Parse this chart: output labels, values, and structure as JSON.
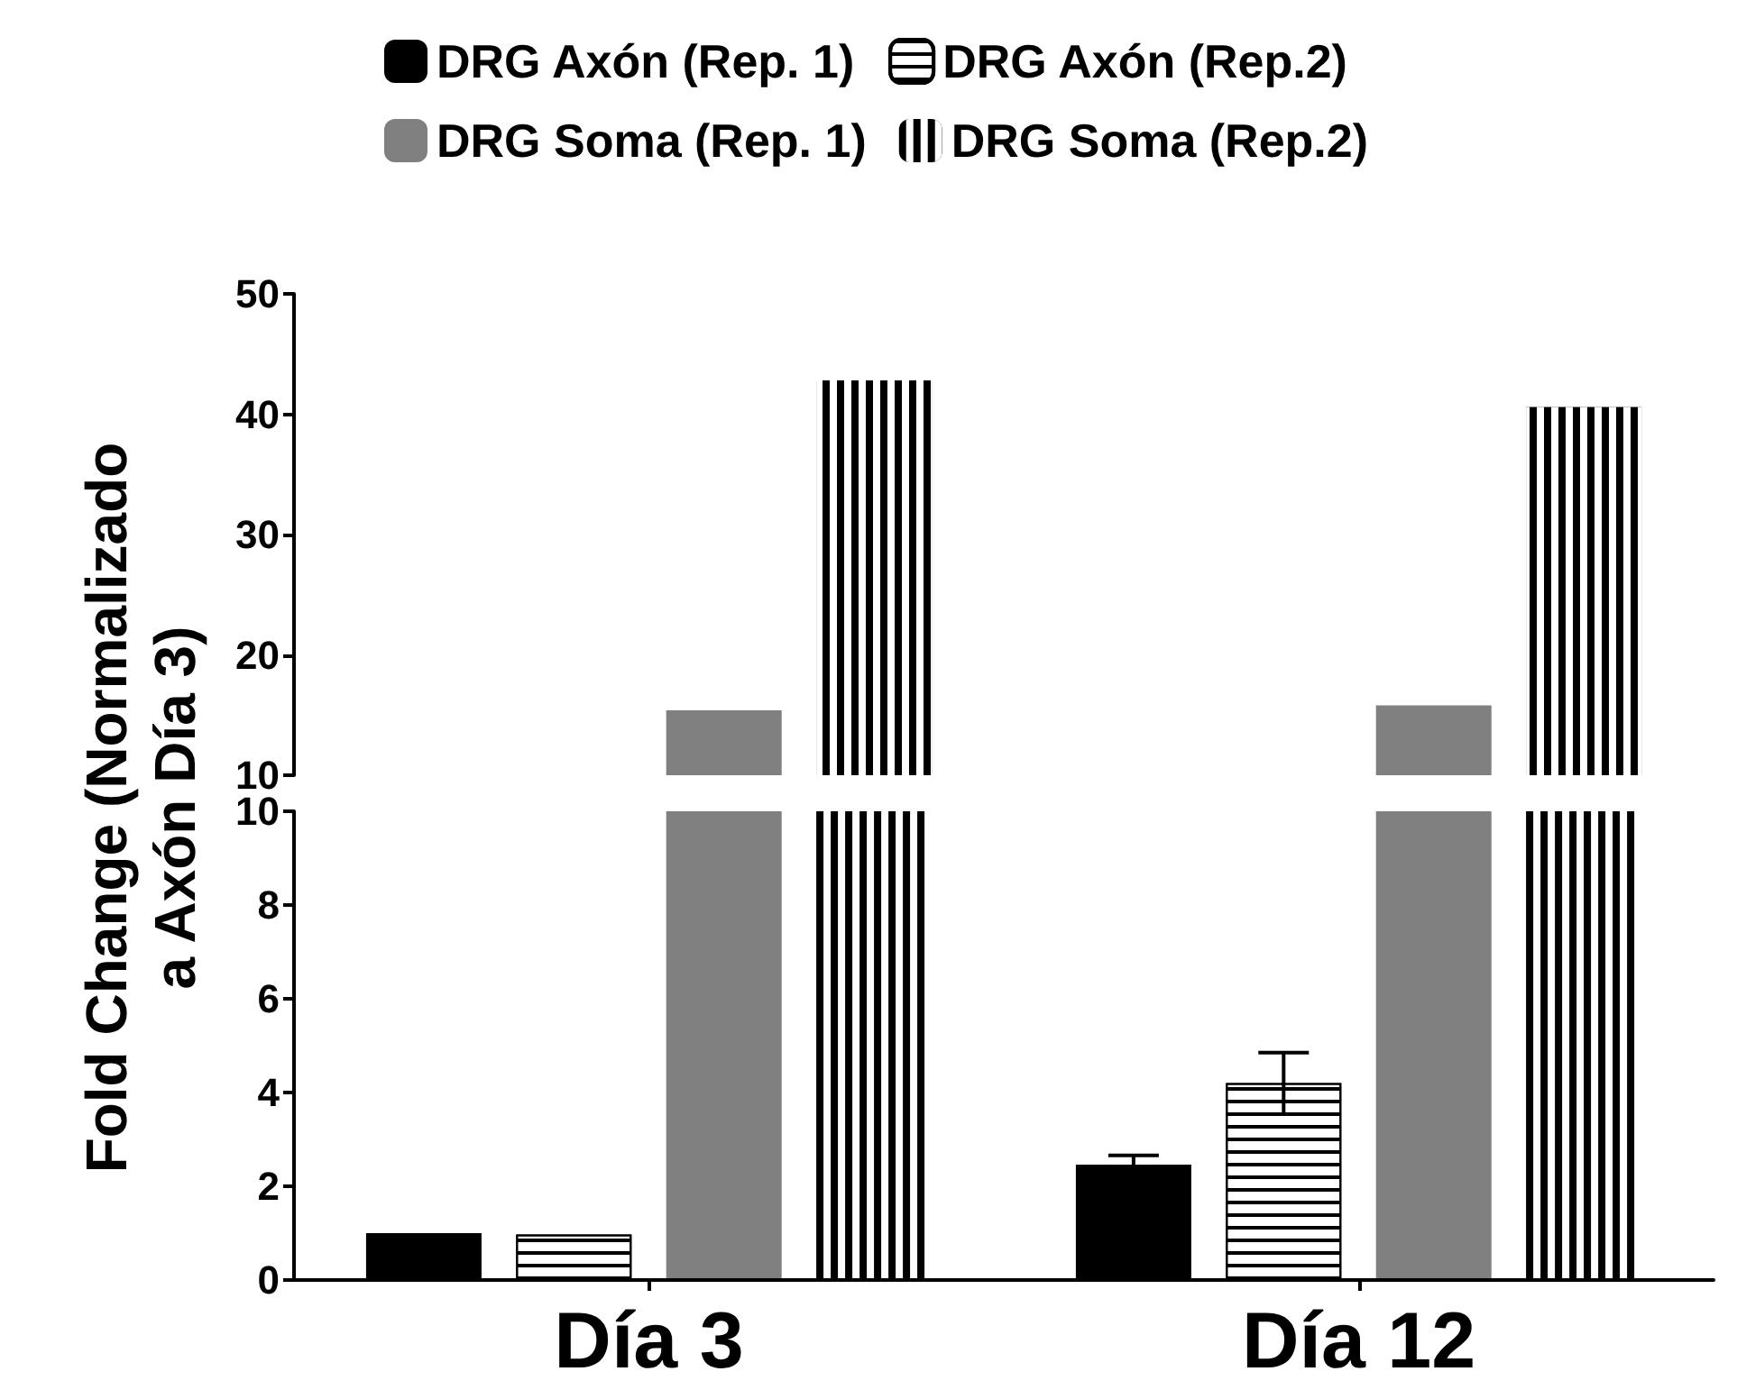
{
  "chart_data": [
    {
      "type": "bar",
      "categories": [
        null,
        null
      ],
      "series": [
        {
          "color": "#808080",
          "values": [
            15.4,
            15.8
          ]
        },
        {
          "color": "#000000",
          "values": [
            42.8,
            40.6
          ]
        }
      ],
      "ylim": [
        10,
        50
      ],
      "yticks": [
        10,
        20,
        30,
        40,
        50
      ],
      "grid": false,
      "tick_labels": "y"
    },
    {
      "type": "bar",
      "ylabel": "Fold Change (Normalizado\na Axón Día 3)",
      "categories": [
        "Día 3",
        "Día 12"
      ],
      "series": [
        {
          "name": "DRG Axón (Rep. 1)",
          "color": "#000000",
          "values": [
            1.0,
            2.46
          ],
          "errors": [
            null,
            0.2
          ]
        },
        {
          "name": "DRG Axón (Rep.2)",
          "color": "#ffffff",
          "values": [
            0.97,
            4.2
          ],
          "errors": [
            null,
            0.65
          ]
        },
        {
          "name": "DRG Soma (Rep. 1)",
          "color": "#808080",
          "values": [
            null,
            null
          ]
        },
        {
          "name": "DRG Soma (Rep.2)",
          "color": "#000000",
          "values": [
            null,
            null
          ]
        }
      ],
      "ylim": [
        0,
        10
      ],
      "yticks": [
        0,
        2,
        4,
        6,
        8,
        10
      ],
      "grid": false,
      "legend": "top"
    }
  ]
}
